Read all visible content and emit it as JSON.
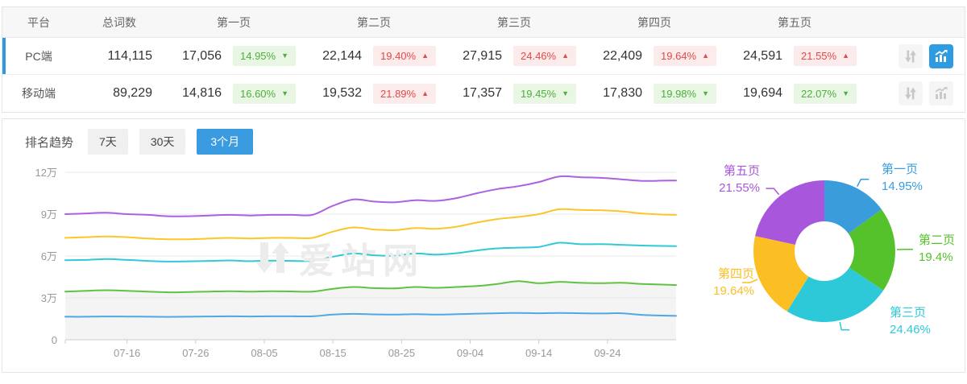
{
  "table": {
    "headers": {
      "platform": "平台",
      "total": "总词数",
      "pages": [
        "第一页",
        "第二页",
        "第三页",
        "第四页",
        "第五页"
      ]
    },
    "rows": [
      {
        "platform": "PC端",
        "total": "114,115",
        "selected": true,
        "chart_active": true,
        "pages": [
          {
            "count": "17,056",
            "pct": "14.95%",
            "dir": "down"
          },
          {
            "count": "22,144",
            "pct": "19.40%",
            "dir": "up"
          },
          {
            "count": "27,915",
            "pct": "24.46%",
            "dir": "up"
          },
          {
            "count": "22,409",
            "pct": "19.64%",
            "dir": "up"
          },
          {
            "count": "24,591",
            "pct": "21.55%",
            "dir": "up"
          }
        ]
      },
      {
        "platform": "移动端",
        "total": "89,229",
        "selected": false,
        "chart_active": false,
        "pages": [
          {
            "count": "14,816",
            "pct": "16.60%",
            "dir": "down"
          },
          {
            "count": "19,532",
            "pct": "21.89%",
            "dir": "up"
          },
          {
            "count": "17,357",
            "pct": "19.45%",
            "dir": "down"
          },
          {
            "count": "17,830",
            "pct": "19.98%",
            "dir": "down"
          },
          {
            "count": "19,694",
            "pct": "22.07%",
            "dir": "down"
          }
        ]
      }
    ]
  },
  "icons": {
    "sort": "⇅",
    "trend": "bar-chart-with-rising-arrow"
  },
  "trend": {
    "title": "排名趋势",
    "tabs": [
      {
        "label": "7天",
        "active": false
      },
      {
        "label": "30天",
        "active": false
      },
      {
        "label": "3个月",
        "active": true
      }
    ]
  },
  "watermark": "爱站网",
  "colors": {
    "accent_blue": "#2f9be0",
    "selected_row_stripe": "#2d9cdb",
    "badge_up_red": "#e24a4a",
    "badge_down_green": "#4daf3e",
    "grid_line": "#e9e9e9",
    "axis_line": "#cccccc",
    "axis_text": "#999999",
    "area_fill": "#f4f4f4"
  },
  "chart_data": [
    {
      "type": "line",
      "title": "排名趋势 3个月 (PC端, 堆叠累计词数)",
      "unit": "万",
      "ylim": [
        0,
        12
      ],
      "grid": true,
      "y_ticks": [
        {
          "v": 0,
          "label": "0"
        },
        {
          "v": 3,
          "label": "3万"
        },
        {
          "v": 6,
          "label": "6万"
        },
        {
          "v": 9,
          "label": "9万"
        },
        {
          "v": 12,
          "label": "12万"
        }
      ],
      "x_ticks": [
        {
          "day": 9,
          "label": "07-16"
        },
        {
          "day": 19,
          "label": "07-26"
        },
        {
          "day": 29,
          "label": "08-05"
        },
        {
          "day": 39,
          "label": "08-15"
        },
        {
          "day": 49,
          "label": "08-25"
        },
        {
          "day": 59,
          "label": "09-04"
        },
        {
          "day": 69,
          "label": "09-14"
        },
        {
          "day": 79,
          "label": "09-24"
        }
      ],
      "total_days": 89,
      "sample_days": [
        0,
        3,
        6,
        9,
        12,
        15,
        18,
        21,
        24,
        27,
        30,
        33,
        36,
        39,
        42,
        45,
        48,
        51,
        54,
        57,
        60,
        63,
        66,
        69,
        72,
        75,
        78,
        81,
        84,
        87,
        89
      ],
      "area_series_index": 1,
      "series": [
        {
          "name": "第一页",
          "color": "#4fa8e3",
          "values": [
            1.65,
            1.65,
            1.67,
            1.66,
            1.65,
            1.64,
            1.65,
            1.67,
            1.68,
            1.67,
            1.68,
            1.68,
            1.68,
            1.8,
            1.85,
            1.82,
            1.8,
            1.83,
            1.8,
            1.83,
            1.87,
            1.9,
            1.92,
            1.9,
            1.92,
            1.9,
            1.88,
            1.9,
            1.78,
            1.73,
            1.71
          ]
        },
        {
          "name": "第二页(累计)",
          "color": "#5fc244",
          "values": [
            3.45,
            3.5,
            3.55,
            3.5,
            3.45,
            3.4,
            3.42,
            3.45,
            3.48,
            3.45,
            3.48,
            3.46,
            3.45,
            3.65,
            3.78,
            3.7,
            3.68,
            3.78,
            3.72,
            3.78,
            3.85,
            4.0,
            4.2,
            4.05,
            4.15,
            4.08,
            4.05,
            4.08,
            4.0,
            3.95,
            3.92
          ]
        },
        {
          "name": "第三页(累计)",
          "color": "#30c9d6",
          "values": [
            5.7,
            5.72,
            5.78,
            5.72,
            5.65,
            5.6,
            5.62,
            5.65,
            5.68,
            5.63,
            5.67,
            5.65,
            5.65,
            5.95,
            6.18,
            6.05,
            6.02,
            6.18,
            6.1,
            6.2,
            6.4,
            6.55,
            6.6,
            6.65,
            6.95,
            6.85,
            6.85,
            6.8,
            6.75,
            6.72,
            6.71
          ]
        },
        {
          "name": "第四页(累计)",
          "color": "#fbc62b",
          "values": [
            7.3,
            7.35,
            7.4,
            7.35,
            7.25,
            7.2,
            7.2,
            7.25,
            7.3,
            7.25,
            7.3,
            7.3,
            7.3,
            7.75,
            8.05,
            7.9,
            7.85,
            8.0,
            7.95,
            8.1,
            8.4,
            8.65,
            8.8,
            9.0,
            9.35,
            9.3,
            9.28,
            9.2,
            9.05,
            8.97,
            8.95
          ]
        },
        {
          "name": "第五页(累计)",
          "color": "#ac61e0",
          "values": [
            9.0,
            9.05,
            9.1,
            9.0,
            8.95,
            8.85,
            8.85,
            8.9,
            8.95,
            8.9,
            8.95,
            8.95,
            8.95,
            9.6,
            10.05,
            9.9,
            9.85,
            10.0,
            9.95,
            10.15,
            10.5,
            10.8,
            11.0,
            11.3,
            11.7,
            11.65,
            11.6,
            11.5,
            11.38,
            11.4,
            11.41
          ]
        }
      ]
    },
    {
      "type": "pie",
      "donut": true,
      "start_angle_deg": -90,
      "clockwise": true,
      "labels": [
        "第一页",
        "第二页",
        "第三页",
        "第四页",
        "第五页"
      ],
      "values": [
        14.95,
        19.4,
        24.46,
        19.64,
        21.55
      ],
      "display": [
        "14.95%",
        "19.4%",
        "24.46%",
        "19.64%",
        "21.55%"
      ],
      "colors": [
        "#3b9cdb",
        "#55c22b",
        "#2ec9d9",
        "#fbbe23",
        "#a857dc"
      ]
    }
  ]
}
